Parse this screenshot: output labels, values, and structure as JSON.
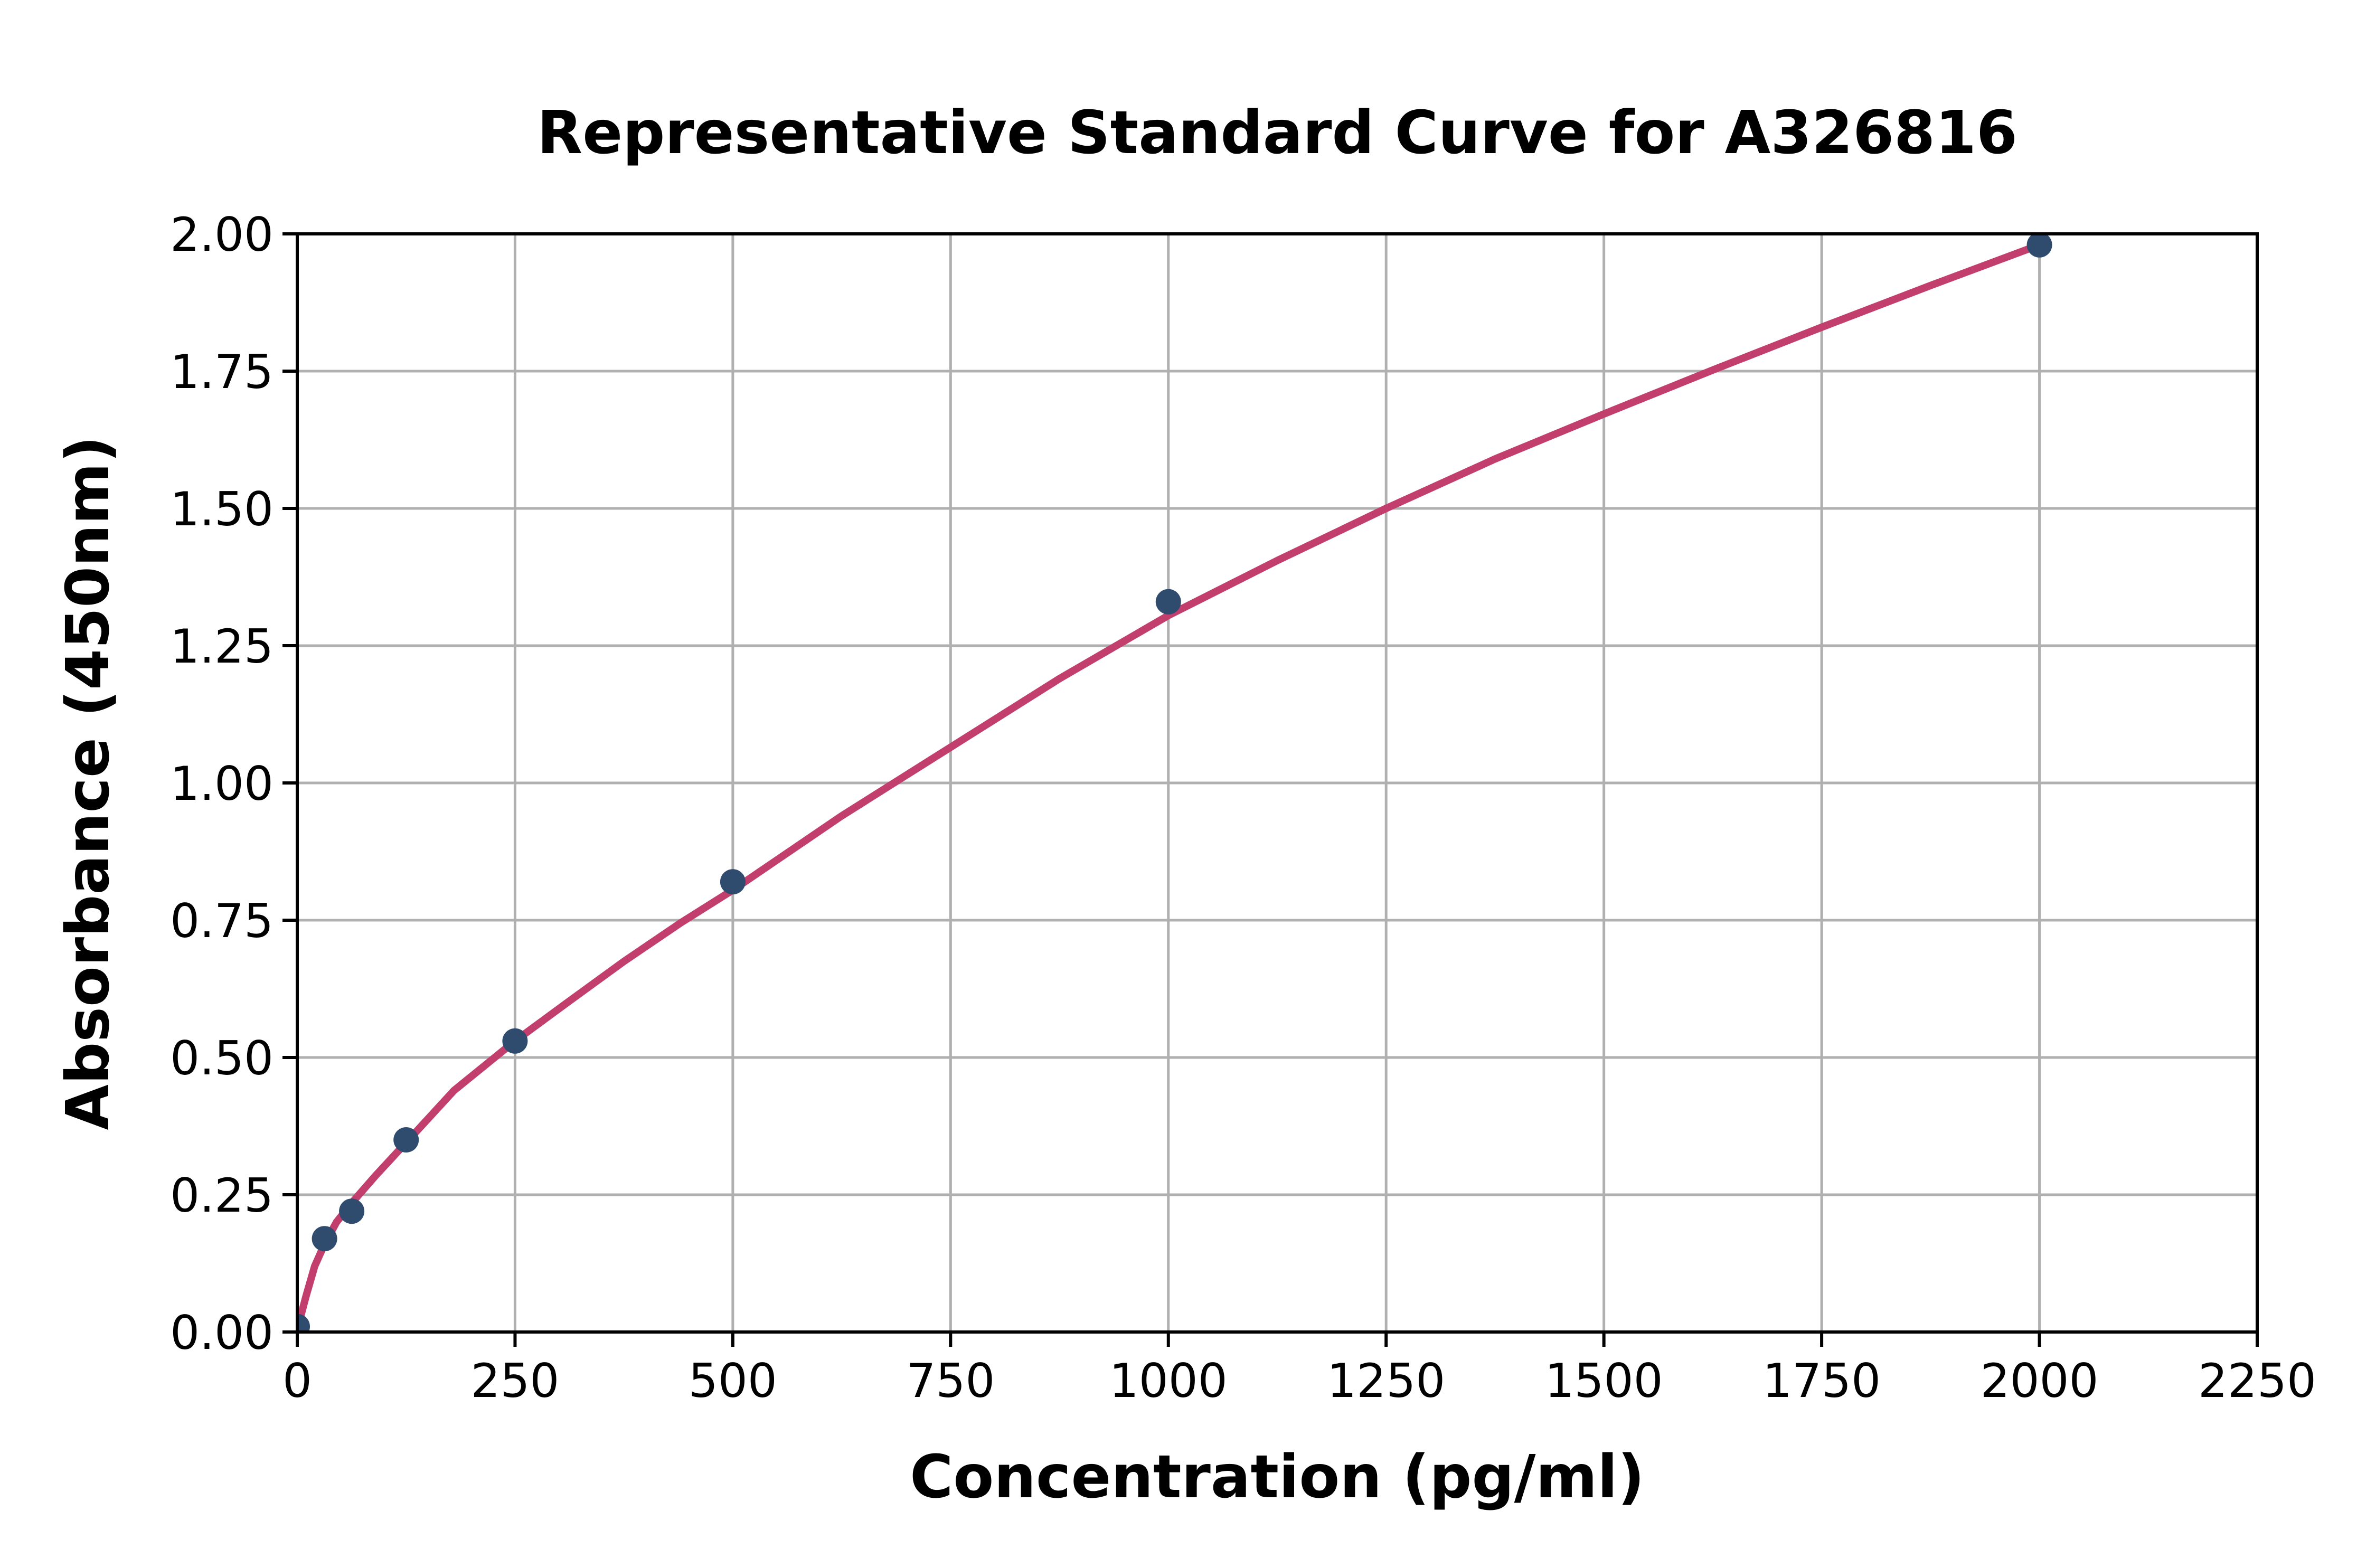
{
  "page": {
    "background": "#ffffff"
  },
  "chart_data": {
    "type": "scatter",
    "title": "Representative Standard Curve for A326816",
    "xlabel": "Concentration (pg/ml)",
    "ylabel": "Absorbance (450nm)",
    "xlim": [
      0,
      2250
    ],
    "ylim": [
      0,
      2.0
    ],
    "xticks": [
      0,
      250,
      500,
      750,
      1000,
      1250,
      1500,
      1750,
      2000,
      2250
    ],
    "xtick_labels": [
      "0",
      "250",
      "500",
      "750",
      "1000",
      "1250",
      "1500",
      "1750",
      "2000",
      "2250"
    ],
    "yticks": [
      0,
      0.25,
      0.5,
      0.75,
      1.0,
      1.25,
      1.5,
      1.75,
      2.0
    ],
    "ytick_labels": [
      "0.00",
      "0.25",
      "0.50",
      "0.75",
      "1.00",
      "1.25",
      "1.50",
      "1.75",
      "2.00"
    ],
    "grid": true,
    "legend": false,
    "series": [
      {
        "name": "standard-points",
        "type": "scatter",
        "x": [
          0,
          31.25,
          62.5,
          125,
          250,
          500,
          1000,
          2000
        ],
        "y": [
          0.01,
          0.17,
          0.22,
          0.35,
          0.53,
          0.82,
          1.33,
          1.98
        ]
      },
      {
        "name": "fitted-curve",
        "type": "line",
        "x": [
          0,
          10,
          20,
          31.25,
          45,
          62.5,
          90,
          125,
          180,
          250,
          310,
          375,
          440,
          500,
          625,
          750,
          875,
          1000,
          1125,
          1250,
          1375,
          1500,
          1625,
          1750,
          1875,
          2000
        ],
        "y": [
          0.005,
          0.065,
          0.12,
          0.16,
          0.2,
          0.235,
          0.285,
          0.345,
          0.44,
          0.53,
          0.6,
          0.675,
          0.745,
          0.805,
          0.94,
          1.065,
          1.19,
          1.305,
          1.405,
          1.5,
          1.59,
          1.672,
          1.752,
          1.83,
          1.906,
          1.98
        ]
      }
    ],
    "colors": {
      "curve": "#c23e6d",
      "marker": "#2f4b6d",
      "grid": "#b0b0b0",
      "axis": "#000000",
      "text": "#000000"
    }
  }
}
